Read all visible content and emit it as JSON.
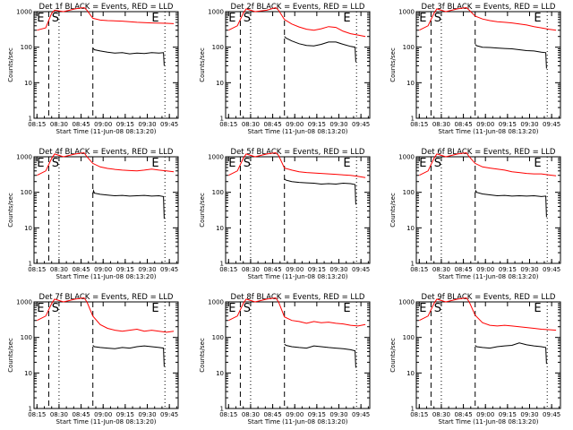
{
  "chart_data": [
    {
      "type": "line",
      "title": "Det 1f BLACK = Events, RED = LLD",
      "xlabel": "Start Time (11-Jun-08 08:13:20)",
      "ylabel": "Counts/sec",
      "yscale": "log",
      "ylim": [
        1,
        1000
      ],
      "x_ticks": [
        "08:15",
        "08:30",
        "08:45",
        "09:00",
        "09:15",
        "09:30",
        "09:45"
      ],
      "y_ticks": [
        "1",
        "10",
        "100",
        "1000"
      ],
      "annotations": [
        "E",
        "S",
        "E"
      ],
      "series": [
        {
          "name": "LLD",
          "color": "#ff0000",
          "x_min": [
            2,
            8,
            12,
            14,
            20,
            28,
            34,
            36,
            40,
            45,
            50,
            60,
            70,
            80,
            90,
            95
          ],
          "y": [
            300,
            350,
            900,
            1100,
            1000,
            1200,
            1300,
            1100,
            650,
            580,
            560,
            540,
            500,
            480,
            470,
            460
          ]
        },
        {
          "name": "Events",
          "color": "#000000",
          "x_min": [
            40,
            41,
            45,
            50,
            55,
            60,
            65,
            70,
            75,
            80,
            85,
            88,
            88.5
          ],
          "y": [
            95,
            85,
            78,
            72,
            68,
            70,
            65,
            68,
            66,
            70,
            68,
            70,
            30
          ]
        }
      ]
    },
    {
      "type": "line",
      "title": "Det 2f BLACK = Events, RED = LLD",
      "xlabel": "Start Time (11-Jun-08 08:13:20)",
      "ylabel": "Counts/sec",
      "yscale": "log",
      "ylim": [
        1,
        1000
      ],
      "x_ticks": [
        "08:15",
        "08:30",
        "08:45",
        "09:00",
        "09:15",
        "09:30",
        "09:45"
      ],
      "y_ticks": [
        "1",
        "10",
        "100",
        "1000"
      ],
      "annotations": [
        "E",
        "S",
        "E"
      ],
      "series": [
        {
          "name": "LLD",
          "color": "#ff0000",
          "x_min": [
            2,
            8,
            12,
            14,
            20,
            28,
            34,
            36,
            40,
            45,
            50,
            55,
            60,
            65,
            70,
            75,
            80,
            85,
            90,
            95
          ],
          "y": [
            300,
            400,
            900,
            1200,
            1000,
            1100,
            1300,
            1100,
            600,
            450,
            370,
            320,
            300,
            330,
            380,
            360,
            280,
            240,
            220,
            200
          ]
        },
        {
          "name": "Events",
          "color": "#000000",
          "x_min": [
            40,
            41,
            45,
            50,
            55,
            60,
            65,
            70,
            75,
            80,
            85,
            88,
            88.5
          ],
          "y": [
            200,
            180,
            150,
            125,
            112,
            108,
            120,
            140,
            140,
            120,
            105,
            100,
            38
          ]
        }
      ]
    },
    {
      "type": "line",
      "title": "Det 3f BLACK = Events, RED = LLD",
      "xlabel": "Start Time (11-Jun-08 08:13:20)",
      "ylabel": "Counts/sec",
      "yscale": "log",
      "ylim": [
        1,
        1000
      ],
      "x_ticks": [
        "08:15",
        "08:30",
        "08:45",
        "09:00",
        "09:15",
        "09:30",
        "09:45"
      ],
      "y_ticks": [
        "1",
        "10",
        "100",
        "1000"
      ],
      "annotations": [
        "E",
        "S",
        "E"
      ],
      "series": [
        {
          "name": "LLD",
          "color": "#ff0000",
          "x_min": [
            2,
            8,
            12,
            14,
            20,
            28,
            34,
            36,
            40,
            45,
            50,
            55,
            60,
            65,
            70,
            75,
            80,
            85,
            90,
            95
          ],
          "y": [
            300,
            400,
            900,
            1200,
            1000,
            1200,
            1300,
            1100,
            750,
            620,
            560,
            520,
            500,
            480,
            450,
            420,
            380,
            350,
            320,
            300
          ]
        },
        {
          "name": "Events",
          "color": "#000000",
          "x_min": [
            40,
            41,
            45,
            50,
            55,
            60,
            65,
            70,
            75,
            80,
            85,
            88,
            88.5
          ],
          "y": [
            120,
            110,
            100,
            98,
            95,
            92,
            90,
            85,
            80,
            78,
            72,
            70,
            25
          ]
        }
      ]
    },
    {
      "type": "line",
      "title": "Det 4f BLACK = Events, RED = LLD",
      "xlabel": "Start Time (11-Jun-08 08:13:20)",
      "ylabel": "Counts/sec",
      "yscale": "log",
      "ylim": [
        1,
        1000
      ],
      "x_ticks": [
        "08:15",
        "08:30",
        "08:45",
        "09:00",
        "09:15",
        "09:30",
        "09:45"
      ],
      "y_ticks": [
        "1",
        "10",
        "100",
        "1000"
      ],
      "annotations": [
        "E",
        "S",
        "E"
      ],
      "series": [
        {
          "name": "LLD",
          "color": "#ff0000",
          "x_min": [
            2,
            8,
            12,
            14,
            20,
            28,
            34,
            36,
            40,
            45,
            50,
            55,
            60,
            65,
            70,
            75,
            80,
            85,
            90,
            95
          ],
          "y": [
            300,
            400,
            900,
            1200,
            1000,
            1200,
            1300,
            1000,
            650,
            520,
            470,
            440,
            420,
            410,
            400,
            420,
            450,
            420,
            400,
            380
          ]
        },
        {
          "name": "Events",
          "color": "#000000",
          "x_min": [
            40,
            40.5,
            41,
            45,
            50,
            55,
            60,
            65,
            70,
            75,
            80,
            85,
            88,
            88.5
          ],
          "y": [
            90,
            110,
            95,
            88,
            84,
            80,
            82,
            78,
            80,
            82,
            78,
            80,
            76,
            18
          ]
        }
      ]
    },
    {
      "type": "line",
      "title": "Det 5f BLACK = Events, RED = LLD",
      "xlabel": "Start Time (11-Jun-08 08:13:20)",
      "ylabel": "Counts/sec",
      "yscale": "log",
      "ylim": [
        1,
        1000
      ],
      "x_ticks": [
        "08:15",
        "08:30",
        "08:45",
        "09:00",
        "09:15",
        "09:30",
        "09:45"
      ],
      "y_ticks": [
        "1",
        "10",
        "100",
        "1000"
      ],
      "annotations": [
        "E",
        "S",
        "E"
      ],
      "series": [
        {
          "name": "LLD",
          "color": "#ff0000",
          "x_min": [
            2,
            8,
            12,
            14,
            20,
            28,
            34,
            36,
            40,
            45,
            50,
            55,
            60,
            65,
            70,
            75,
            80,
            85,
            90,
            95
          ],
          "y": [
            300,
            400,
            900,
            1200,
            1000,
            1200,
            1300,
            1100,
            480,
            420,
            380,
            360,
            350,
            340,
            330,
            320,
            310,
            300,
            280,
            260
          ]
        },
        {
          "name": "Events",
          "color": "#000000",
          "x_min": [
            40,
            41,
            45,
            50,
            55,
            60,
            65,
            70,
            75,
            80,
            85,
            88,
            88.5
          ],
          "y": [
            240,
            220,
            200,
            190,
            185,
            180,
            170,
            175,
            170,
            180,
            175,
            165,
            45
          ]
        }
      ]
    },
    {
      "type": "line",
      "title": "Det 6f BLACK = Events, RED = LLD",
      "xlabel": "Start Time (11-Jun-08 08:13:20)",
      "ylabel": "Counts/sec",
      "yscale": "log",
      "ylim": [
        1,
        1000
      ],
      "x_ticks": [
        "08:15",
        "08:30",
        "08:45",
        "09:00",
        "09:15",
        "09:30",
        "09:45"
      ],
      "y_ticks": [
        "1",
        "10",
        "100",
        "1000"
      ],
      "annotations": [
        "E",
        "S",
        "E"
      ],
      "series": [
        {
          "name": "LLD",
          "color": "#ff0000",
          "x_min": [
            2,
            8,
            12,
            14,
            20,
            28,
            34,
            36,
            40,
            45,
            50,
            55,
            60,
            65,
            70,
            75,
            80,
            85,
            90,
            95
          ],
          "y": [
            300,
            400,
            900,
            1200,
            1000,
            1200,
            1300,
            1000,
            650,
            520,
            480,
            450,
            420,
            380,
            360,
            340,
            330,
            330,
            310,
            290
          ]
        },
        {
          "name": "Events",
          "color": "#000000",
          "x_min": [
            40,
            40.5,
            41,
            45,
            50,
            55,
            60,
            65,
            70,
            75,
            80,
            85,
            88,
            88.5
          ],
          "y": [
            95,
            110,
            100,
            90,
            85,
            80,
            82,
            78,
            80,
            78,
            80,
            76,
            78,
            20
          ]
        }
      ]
    },
    {
      "type": "line",
      "title": "Det 7f BLACK = Events, RED = LLD",
      "xlabel": "Start Time (11-Jun-08 08:13:20)",
      "ylabel": "Counts/sec",
      "yscale": "log",
      "ylim": [
        1,
        1000
      ],
      "x_ticks": [
        "08:15",
        "08:30",
        "08:45",
        "09:00",
        "09:15",
        "09:30",
        "09:45"
      ],
      "y_ticks": [
        "1",
        "10",
        "100",
        "1000"
      ],
      "annotations": [
        "E",
        "S",
        "E"
      ],
      "series": [
        {
          "name": "LLD",
          "color": "#ff0000",
          "x_min": [
            2,
            8,
            12,
            14,
            20,
            28,
            34,
            36,
            40,
            45,
            50,
            55,
            60,
            65,
            70,
            75,
            80,
            85,
            90,
            95
          ],
          "y": [
            300,
            400,
            900,
            1200,
            1000,
            1200,
            1300,
            1000,
            400,
            230,
            180,
            160,
            150,
            160,
            170,
            150,
            160,
            150,
            140,
            150
          ]
        },
        {
          "name": "Events",
          "color": "#000000",
          "x_min": [
            40,
            41,
            45,
            50,
            55,
            60,
            65,
            70,
            75,
            80,
            85,
            88,
            88.5
          ],
          "y": [
            60,
            55,
            52,
            50,
            48,
            52,
            50,
            55,
            58,
            55,
            52,
            50,
            15
          ]
        }
      ]
    },
    {
      "type": "line",
      "title": "Det 8f BLACK = Events, RED = LLD",
      "xlabel": "Start Time (11-Jun-08 08:13:20)",
      "ylabel": "Counts/sec",
      "yscale": "log",
      "ylim": [
        1,
        1000
      ],
      "x_ticks": [
        "08:15",
        "08:30",
        "08:45",
        "09:00",
        "09:15",
        "09:30",
        "09:45"
      ],
      "y_ticks": [
        "1",
        "10",
        "100",
        "1000"
      ],
      "annotations": [
        "E",
        "S",
        "E"
      ],
      "series": [
        {
          "name": "LLD",
          "color": "#ff0000",
          "x_min": [
            2,
            8,
            12,
            14,
            20,
            28,
            34,
            36,
            40,
            45,
            50,
            55,
            60,
            65,
            70,
            75,
            80,
            85,
            90,
            95
          ],
          "y": [
            300,
            400,
            900,
            1200,
            1000,
            1200,
            1300,
            1000,
            380,
            300,
            280,
            250,
            280,
            260,
            270,
            250,
            240,
            220,
            210,
            230
          ]
        },
        {
          "name": "Events",
          "color": "#000000",
          "x_min": [
            40,
            41,
            45,
            50,
            55,
            60,
            65,
            70,
            75,
            80,
            85,
            88,
            88.5
          ],
          "y": [
            65,
            60,
            55,
            52,
            50,
            58,
            55,
            52,
            50,
            48,
            45,
            42,
            14
          ]
        }
      ]
    },
    {
      "type": "line",
      "title": "Det 9f BLACK = Events, RED = LLD",
      "xlabel": "Start Time (11-Jun-08 08:13:20)",
      "ylabel": "Counts/sec",
      "yscale": "log",
      "ylim": [
        1,
        1000
      ],
      "x_ticks": [
        "08:15",
        "08:30",
        "08:45",
        "09:00",
        "09:15",
        "09:30",
        "09:45"
      ],
      "y_ticks": [
        "1",
        "10",
        "100",
        "1000"
      ],
      "annotations": [
        "E",
        "S",
        "E"
      ],
      "series": [
        {
          "name": "LLD",
          "color": "#ff0000",
          "x_min": [
            2,
            8,
            12,
            14,
            20,
            28,
            34,
            36,
            40,
            45,
            50,
            55,
            60,
            65,
            70,
            75,
            80,
            85,
            90,
            95
          ],
          "y": [
            300,
            400,
            900,
            1200,
            1000,
            1200,
            1300,
            1000,
            420,
            260,
            220,
            210,
            220,
            210,
            200,
            190,
            180,
            170,
            165,
            160
          ]
        },
        {
          "name": "Events",
          "color": "#000000",
          "x_min": [
            40,
            41,
            45,
            50,
            55,
            60,
            65,
            70,
            75,
            80,
            85,
            88,
            88.5
          ],
          "y": [
            60,
            55,
            52,
            50,
            55,
            58,
            60,
            70,
            62,
            58,
            55,
            52,
            18
          ]
        }
      ]
    }
  ]
}
